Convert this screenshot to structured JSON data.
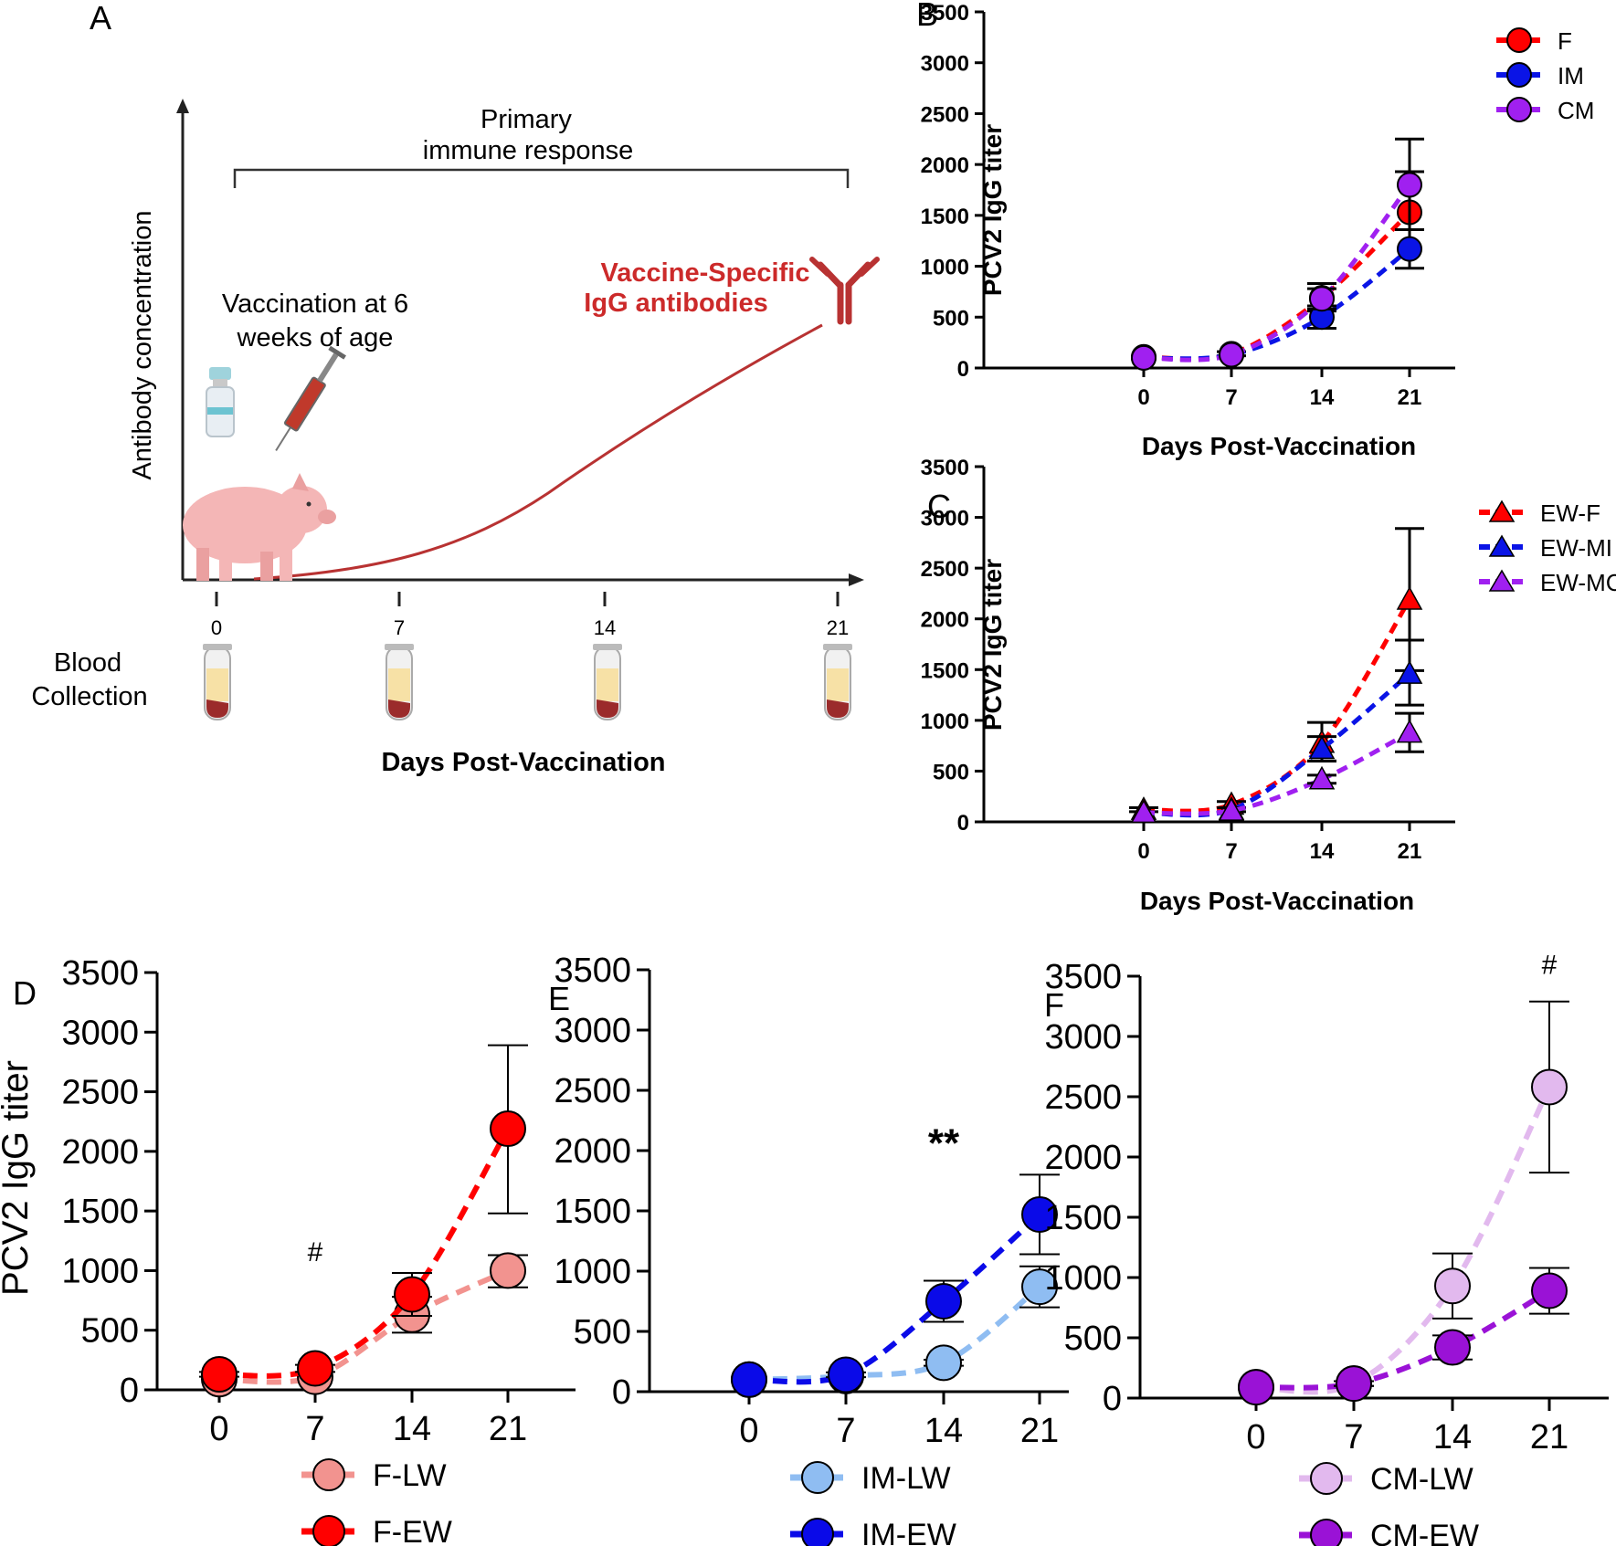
{
  "panelA": {
    "letter": "A",
    "bracket_label_1": "Primary",
    "bracket_label_2": "immune response",
    "y_axis_label": "Antibody concentration",
    "vaccination_1": "Vaccination at 6",
    "vaccination_2": "weeks of age",
    "antibody_label_1": "Vaccine-Specific",
    "antibody_label_2": "IgG antibodies",
    "ticks": [
      "0",
      "7",
      "14",
      "21"
    ],
    "blood_1": "Blood",
    "blood_2": "Collection",
    "x_axis_label": "Days Post-Vaccination",
    "colors": {
      "curve": "#b83232",
      "label": "#cc2a2a",
      "pig": "#f4b6b6",
      "tube_serum": "#f7e1a6",
      "tube_blood": "#9b2b2b"
    }
  },
  "chart_data": [
    {
      "id": "B",
      "letter": "B",
      "type": "line",
      "marker": "circle",
      "categories": [
        "0",
        "7",
        "14",
        "21"
      ],
      "x": [
        0,
        7,
        14,
        21
      ],
      "xlabel": "Days Post-Vaccination",
      "ylabel": "PCV2 IgG titer",
      "ylim": [
        0,
        3500
      ],
      "yticks": [
        "0",
        "500",
        "1000",
        "1500",
        "2000",
        "2500",
        "3000",
        "3500"
      ],
      "legend_position": "top-right",
      "series": [
        {
          "name": "F",
          "color": "#ff0000",
          "values": [
            110,
            140,
            690,
            1530
          ],
          "err_low": [
            100,
            120,
            560,
            1360
          ],
          "err_high": [
            120,
            160,
            830,
            1930
          ]
        },
        {
          "name": "IM",
          "color": "#0a14e6",
          "values": [
            100,
            130,
            500,
            1170
          ],
          "err_low": [
            90,
            115,
            390,
            980
          ],
          "err_high": [
            110,
            145,
            610,
            1360
          ]
        },
        {
          "name": "CM",
          "color": "#a020f0",
          "values": [
            100,
            130,
            680,
            1800
          ],
          "err_low": [
            90,
            115,
            580,
            1360
          ],
          "err_high": [
            110,
            145,
            780,
            2250
          ]
        }
      ]
    },
    {
      "id": "C",
      "letter": "C",
      "type": "line",
      "marker": "triangle",
      "categories": [
        "0",
        "7",
        "14",
        "21"
      ],
      "x": [
        0,
        7,
        14,
        21
      ],
      "xlabel": "Days Post-Vaccination",
      "ylabel": "PCV2 IgG titer",
      "ylim": [
        0,
        3500
      ],
      "yticks": [
        "0",
        "500",
        "1000",
        "1500",
        "2000",
        "2500",
        "3000",
        "3500"
      ],
      "legend_position": "top-right",
      "series": [
        {
          "name": "EW-F",
          "color": "#ff0000",
          "values": [
            120,
            170,
            780,
            2190
          ],
          "err_low": [
            100,
            140,
            600,
            1490
          ],
          "err_high": [
            140,
            200,
            980,
            2890
          ]
        },
        {
          "name": "EW-MI",
          "color": "#0a14e6",
          "values": [
            90,
            120,
            720,
            1460
          ],
          "err_low": [
            80,
            100,
            600,
            1150
          ],
          "err_high": [
            100,
            140,
            840,
            1790
          ]
        },
        {
          "name": "EW-MC",
          "color": "#a020f0",
          "values": [
            90,
            110,
            420,
            880
          ],
          "err_low": [
            80,
            95,
            380,
            690
          ],
          "err_high": [
            100,
            125,
            460,
            1070
          ]
        }
      ]
    },
    {
      "id": "D",
      "letter": "D",
      "type": "line",
      "marker": "circle",
      "categories": [
        "0",
        "7",
        "14",
        "21"
      ],
      "x": [
        0,
        7,
        14,
        21
      ],
      "xlabel": "",
      "ylabel": "PCV2 IgG titer",
      "ylim": [
        0,
        3500
      ],
      "yticks": [
        "0",
        "500",
        "1000",
        "1500",
        "2000",
        "2500",
        "3000",
        "3500"
      ],
      "legend_position": "bottom",
      "annotations": [
        {
          "text": "#",
          "x": 7,
          "y": 1080,
          "bold": false
        }
      ],
      "series": [
        {
          "name": "F-LW",
          "color": "#f2938f",
          "values": [
            90,
            110,
            630,
            1000
          ],
          "err_low": [
            80,
            95,
            480,
            860
          ],
          "err_high": [
            100,
            125,
            780,
            1130
          ]
        },
        {
          "name": "F-EW",
          "color": "#ff0000",
          "values": [
            130,
            180,
            800,
            2190
          ],
          "err_low": [
            110,
            150,
            620,
            1480
          ],
          "err_high": [
            150,
            210,
            980,
            2890
          ]
        }
      ]
    },
    {
      "id": "E",
      "letter": "E",
      "type": "line",
      "marker": "circle",
      "categories": [
        "0",
        "7",
        "14",
        "21"
      ],
      "x": [
        0,
        7,
        14,
        21
      ],
      "xlabel": "",
      "ylabel": "",
      "ylim": [
        0,
        3500
      ],
      "yticks": [
        "0",
        "500",
        "1000",
        "1500",
        "2000",
        "2500",
        "3000",
        "3500"
      ],
      "legend_position": "bottom",
      "annotations": [
        {
          "text": "**",
          "x": 14,
          "y": 1950,
          "bold": true
        }
      ],
      "series": [
        {
          "name": "IM-LW",
          "color": "#8fbdf2",
          "values": [
            100,
            130,
            240,
            870
          ],
          "err_low": [
            90,
            115,
            215,
            700
          ],
          "err_high": [
            110,
            145,
            265,
            1040
          ]
        },
        {
          "name": "IM-EW",
          "color": "#0a0ae8",
          "values": [
            100,
            140,
            750,
            1470
          ],
          "err_low": [
            90,
            120,
            580,
            1140
          ],
          "err_high": [
            110,
            160,
            920,
            1800
          ]
        }
      ]
    },
    {
      "id": "F",
      "letter": "F",
      "type": "line",
      "marker": "circle",
      "categories": [
        "0",
        "7",
        "14",
        "21"
      ],
      "x": [
        0,
        7,
        14,
        21
      ],
      "xlabel": "",
      "ylabel": "",
      "ylim": [
        0,
        3500
      ],
      "yticks": [
        "0",
        "500",
        "1000",
        "1500",
        "2000",
        "2500",
        "3000",
        "3500"
      ],
      "legend_position": "bottom",
      "annotations": [
        {
          "text": "#",
          "x": 21,
          "y": 3520,
          "bold": false
        }
      ],
      "series": [
        {
          "name": "CM-LW",
          "color": "#e2b9ee",
          "values": [
            90,
            120,
            930,
            2580
          ],
          "err_low": [
            80,
            100,
            660,
            1870
          ],
          "err_high": [
            100,
            140,
            1200,
            3290
          ]
        },
        {
          "name": "CM-EW",
          "color": "#9a12d6",
          "values": [
            90,
            120,
            420,
            890
          ],
          "err_low": [
            80,
            100,
            320,
            700
          ],
          "err_high": [
            100,
            140,
            520,
            1080
          ]
        }
      ]
    }
  ]
}
